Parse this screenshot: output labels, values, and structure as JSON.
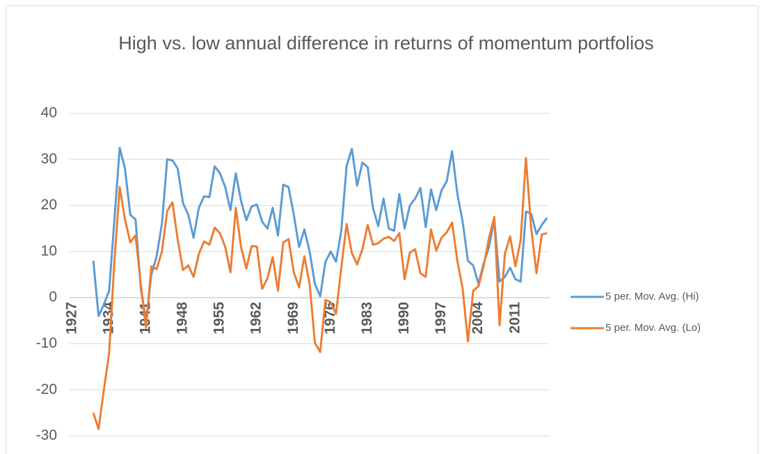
{
  "chart_data": {
    "type": "line",
    "title": "High vs. low annual difference in returns of momentum portfolios",
    "categories": [
      "1927",
      null,
      null,
      null,
      null,
      null,
      null,
      "1934",
      null,
      null,
      null,
      null,
      null,
      null,
      "1941",
      null,
      null,
      null,
      null,
      null,
      null,
      "1948",
      null,
      null,
      null,
      null,
      null,
      null,
      "1955",
      null,
      null,
      null,
      null,
      null,
      null,
      "1962",
      null,
      null,
      null,
      null,
      null,
      null,
      "1969",
      null,
      null,
      null,
      null,
      null,
      null,
      "1976",
      null,
      null,
      null,
      null,
      null,
      null,
      "1983",
      null,
      null,
      null,
      null,
      null,
      null,
      "1990",
      null,
      null,
      null,
      null,
      null,
      null,
      "1997",
      null,
      null,
      null,
      null,
      null,
      null,
      "2004",
      null,
      null,
      null,
      null,
      null,
      null,
      "2011",
      null,
      null,
      null,
      null,
      null,
      null
    ],
    "series": [
      {
        "name": "5 per. Mov. Avg. (Hi)",
        "color": "#5b9bd5",
        "values": [
          null,
          null,
          null,
          null,
          8,
          -4,
          -1.5,
          1.5,
          17,
          32.5,
          28,
          18,
          17,
          2,
          -5,
          5,
          9,
          16,
          30,
          29.8,
          28,
          20.5,
          18,
          13,
          19.5,
          22,
          21.8,
          28.5,
          27,
          24,
          19,
          27,
          21,
          16.8,
          19.8,
          20.2,
          16.5,
          15,
          19.5,
          13.5,
          24.5,
          24,
          18,
          11,
          14.8,
          10,
          3,
          0.3,
          7.8,
          10,
          7.8,
          14.5,
          28.5,
          32.3,
          24.3,
          29.3,
          28.3,
          19.5,
          15.5,
          21.5,
          15,
          14.5,
          22.5,
          15,
          20,
          21.5,
          23.8,
          15.3,
          23.5,
          19,
          23.3,
          25.3,
          31.8,
          22.5,
          16.5,
          8,
          7,
          3,
          7.5,
          11,
          17,
          3.5,
          4.5,
          6.5,
          4,
          3.5,
          18.7,
          18.2,
          13.8,
          15.8,
          17.3
        ]
      },
      {
        "name": "5 per. Mov. Avg. (Lo)",
        "color": "#ed7d31",
        "values": [
          null,
          null,
          null,
          null,
          -25,
          -28.5,
          -20,
          -12,
          8,
          24,
          17,
          12,
          13.5,
          3,
          -6.5,
          6.8,
          6.2,
          10,
          18.8,
          20.7,
          12.5,
          6,
          7,
          4.5,
          9.5,
          12.2,
          11.5,
          15.2,
          14,
          11,
          5.5,
          19.5,
          11,
          6.3,
          11.2,
          11.1,
          1.9,
          4.2,
          8.8,
          1.5,
          12,
          12.7,
          5.5,
          2.2,
          9,
          3,
          -9.8,
          -11.8,
          -0.5,
          -1,
          -3.5,
          6.5,
          16,
          9.7,
          7.2,
          10.5,
          15.8,
          11.5,
          11.8,
          12.8,
          13.2,
          12.3,
          14,
          4,
          9.8,
          10.5,
          5.3,
          4.5,
          14.8,
          10.2,
          13,
          14.2,
          16.3,
          8,
          2,
          -9.5,
          1.5,
          2.5,
          7,
          13,
          17.5,
          -6,
          9.5,
          13.3,
          6.8,
          12.5,
          30.3,
          15,
          5.3,
          13.7,
          14
        ]
      }
    ],
    "ylim": [
      -30,
      40
    ],
    "yticks": [
      -30,
      -20,
      -10,
      0,
      10,
      20,
      30,
      40
    ],
    "grid": true,
    "legend": "right"
  }
}
